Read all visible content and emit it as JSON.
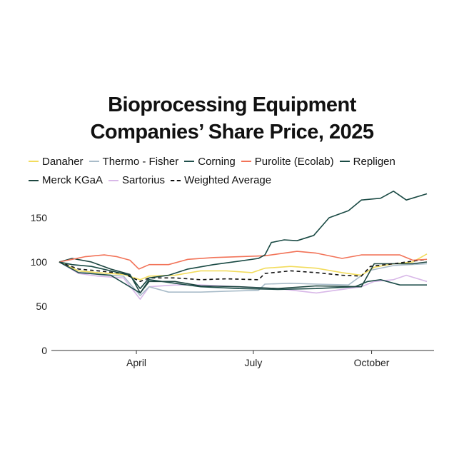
{
  "chart_data": {
    "type": "line",
    "title_lines": [
      "Bioprocessing Equipment",
      "Companies’ Share Price, 2025"
    ],
    "xlabel": "",
    "ylabel": "",
    "x_unit": "day of year 2025",
    "xlim": [
      30,
      316
    ],
    "ylim": [
      0,
      185
    ],
    "x_ticks": [
      {
        "label": "April",
        "day": 90
      },
      {
        "label": "July",
        "day": 181
      },
      {
        "label": "October",
        "day": 273
      }
    ],
    "y_ticks": [
      0,
      50,
      100,
      150
    ],
    "legend_placement": "top",
    "series": [
      {
        "name": "Danaher",
        "color": "#f2dc5d",
        "dash": false,
        "points": [
          [
            30,
            100
          ],
          [
            45,
            90
          ],
          [
            60,
            88
          ],
          [
            80,
            86
          ],
          [
            93,
            80
          ],
          [
            100,
            84
          ],
          [
            120,
            85
          ],
          [
            140,
            90
          ],
          [
            160,
            90
          ],
          [
            180,
            88
          ],
          [
            190,
            93
          ],
          [
            210,
            95
          ],
          [
            230,
            93
          ],
          [
            250,
            88
          ],
          [
            265,
            85
          ],
          [
            275,
            94
          ],
          [
            290,
            98
          ],
          [
            305,
            100
          ],
          [
            316,
            109
          ]
        ]
      },
      {
        "name": "Thermo - Fisher",
        "color": "#a9bcc9",
        "dash": false,
        "points": [
          [
            30,
            100
          ],
          [
            45,
            90
          ],
          [
            60,
            86
          ],
          [
            80,
            84
          ],
          [
            93,
            62
          ],
          [
            100,
            72
          ],
          [
            115,
            66
          ],
          [
            140,
            66
          ],
          [
            160,
            67
          ],
          [
            185,
            68
          ],
          [
            190,
            75
          ],
          [
            210,
            76
          ],
          [
            230,
            75
          ],
          [
            255,
            74
          ],
          [
            270,
            90
          ],
          [
            290,
            96
          ],
          [
            316,
            98
          ]
        ]
      },
      {
        "name": "Corning",
        "color": "#1f4e4a",
        "dash": false,
        "points": [
          [
            30,
            100
          ],
          [
            45,
            88
          ],
          [
            70,
            85
          ],
          [
            93,
            65
          ],
          [
            100,
            80
          ],
          [
            120,
            76
          ],
          [
            140,
            72
          ],
          [
            170,
            70
          ],
          [
            200,
            69
          ],
          [
            230,
            70
          ],
          [
            260,
            72
          ],
          [
            270,
            78
          ],
          [
            280,
            80
          ],
          [
            295,
            74
          ],
          [
            316,
            74
          ]
        ]
      },
      {
        "name": "Purolite (Ecolab)",
        "color": "#f27358",
        "dash": false,
        "points": [
          [
            30,
            100
          ],
          [
            40,
            103
          ],
          [
            50,
            106
          ],
          [
            65,
            108
          ],
          [
            75,
            106
          ],
          [
            85,
            102
          ],
          [
            92,
            92
          ],
          [
            100,
            97
          ],
          [
            115,
            97
          ],
          [
            130,
            103
          ],
          [
            150,
            105
          ],
          [
            170,
            106
          ],
          [
            190,
            107
          ],
          [
            205,
            110
          ],
          [
            215,
            112
          ],
          [
            230,
            110
          ],
          [
            250,
            104
          ],
          [
            265,
            108
          ],
          [
            280,
            108
          ],
          [
            295,
            108
          ],
          [
            305,
            102
          ],
          [
            316,
            103
          ]
        ]
      },
      {
        "name": "Repligen",
        "color": "#1a4a44",
        "dash": false,
        "points": [
          [
            30,
            100
          ],
          [
            40,
            97
          ],
          [
            55,
            95
          ],
          [
            70,
            90
          ],
          [
            85,
            85
          ],
          [
            93,
            70
          ],
          [
            100,
            82
          ],
          [
            115,
            85
          ],
          [
            130,
            92
          ],
          [
            150,
            97
          ],
          [
            170,
            101
          ],
          [
            185,
            104
          ],
          [
            190,
            108
          ],
          [
            195,
            122
          ],
          [
            205,
            125
          ],
          [
            215,
            124
          ],
          [
            228,
            130
          ],
          [
            240,
            150
          ],
          [
            255,
            158
          ],
          [
            265,
            170
          ],
          [
            280,
            172
          ],
          [
            290,
            180
          ],
          [
            300,
            170
          ],
          [
            316,
            177
          ]
        ]
      },
      {
        "name": "Merck KGaA",
        "color": "#1d4640",
        "dash": false,
        "points": [
          [
            30,
            100
          ],
          [
            40,
            104
          ],
          [
            55,
            100
          ],
          [
            70,
            92
          ],
          [
            85,
            86
          ],
          [
            93,
            65
          ],
          [
            100,
            78
          ],
          [
            120,
            78
          ],
          [
            140,
            73
          ],
          [
            170,
            72
          ],
          [
            200,
            70
          ],
          [
            230,
            73
          ],
          [
            265,
            72
          ],
          [
            275,
            98
          ],
          [
            290,
            98
          ],
          [
            305,
            98
          ],
          [
            316,
            100
          ]
        ]
      },
      {
        "name": "Sartorius",
        "color": "#d8b8e8",
        "dash": false,
        "points": [
          [
            30,
            100
          ],
          [
            45,
            87
          ],
          [
            60,
            84
          ],
          [
            80,
            82
          ],
          [
            93,
            58
          ],
          [
            100,
            72
          ],
          [
            120,
            74
          ],
          [
            140,
            74
          ],
          [
            170,
            72
          ],
          [
            200,
            70
          ],
          [
            230,
            65
          ],
          [
            265,
            72
          ],
          [
            275,
            78
          ],
          [
            290,
            80
          ],
          [
            300,
            85
          ],
          [
            316,
            78
          ]
        ]
      },
      {
        "name": "Weighted Average",
        "color": "#111111",
        "dash": true,
        "points": [
          [
            30,
            100
          ],
          [
            45,
            92
          ],
          [
            60,
            90
          ],
          [
            80,
            87
          ],
          [
            93,
            78
          ],
          [
            100,
            82
          ],
          [
            120,
            82
          ],
          [
            140,
            80
          ],
          [
            160,
            81
          ],
          [
            185,
            80
          ],
          [
            190,
            87
          ],
          [
            210,
            90
          ],
          [
            230,
            88
          ],
          [
            250,
            85
          ],
          [
            265,
            84
          ],
          [
            272,
            95
          ],
          [
            290,
            98
          ],
          [
            305,
            101
          ],
          [
            316,
            103
          ]
        ]
      }
    ]
  }
}
